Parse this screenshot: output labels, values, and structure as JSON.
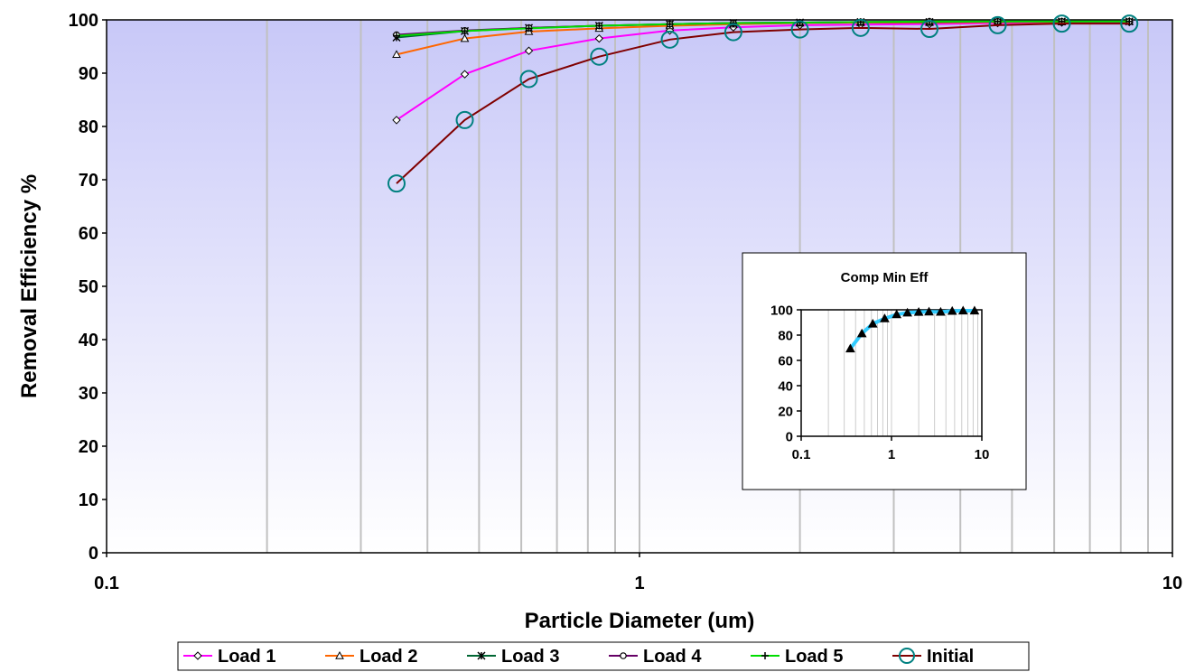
{
  "chart_data": [
    {
      "type": "line",
      "title": "",
      "xlabel": "Particle Diameter (um)",
      "ylabel": "Removal Efficiency %",
      "x_scale": "log",
      "xlim": [
        0.1,
        10
      ],
      "ylim": [
        0,
        100
      ],
      "x_ticks": [
        "0.1",
        "1",
        "10"
      ],
      "y_ticks": [
        "0",
        "10",
        "20",
        "30",
        "40",
        "50",
        "60",
        "70",
        "80",
        "90",
        "100"
      ],
      "grid": "vertical minor log gridlines",
      "legend_position": "bottom",
      "x": [
        0.35,
        0.47,
        0.62,
        0.84,
        1.14,
        1.5,
        2.0,
        2.6,
        3.5,
        4.7,
        6.2,
        8.3
      ],
      "series": [
        {
          "name": "Load 1",
          "color": "#ff00ff",
          "marker": "diamond",
          "values": [
            81.2,
            89.8,
            94.2,
            96.5,
            98.0,
            98.6,
            99.0,
            99.1,
            99.2,
            99.4,
            99.5,
            99.6
          ]
        },
        {
          "name": "Load 2",
          "color": "#ff6600",
          "marker": "triangle",
          "values": [
            93.5,
            96.5,
            97.8,
            98.4,
            98.9,
            99.2,
            99.4,
            99.5,
            99.5,
            99.6,
            99.6,
            99.7
          ]
        },
        {
          "name": "Load 3",
          "color": "#006633",
          "marker": "star",
          "values": [
            96.7,
            97.9,
            98.5,
            98.9,
            99.2,
            99.4,
            99.5,
            99.6,
            99.6,
            99.7,
            99.7,
            99.7
          ]
        },
        {
          "name": "Load 4",
          "color": "#660066",
          "marker": "circle",
          "values": [
            97.2,
            98.0,
            98.5,
            98.9,
            99.2,
            99.4,
            99.5,
            99.6,
            99.7,
            99.7,
            99.7,
            99.7
          ]
        },
        {
          "name": "Load 5",
          "color": "#00dd00",
          "marker": "plus",
          "values": [
            97.0,
            97.9,
            98.4,
            98.9,
            99.2,
            99.4,
            99.5,
            99.6,
            99.7,
            99.7,
            99.7,
            99.7
          ]
        },
        {
          "name": "Initial",
          "color": "#800000",
          "marker": "open-circle",
          "marker_color": "#008080",
          "values": [
            69.3,
            81.2,
            88.9,
            93.1,
            96.3,
            97.7,
            98.2,
            98.5,
            98.3,
            99.0,
            99.3,
            99.3
          ]
        }
      ],
      "plot_background": "gradient #c8c8f8 to #ffffff",
      "colors": {
        "grid": "#c0c0c0"
      }
    },
    {
      "type": "line",
      "title": "Comp Min Eff",
      "xlabel": "",
      "ylabel": "",
      "x_scale": "log",
      "xlim": [
        0.1,
        10
      ],
      "ylim": [
        0,
        100
      ],
      "x_ticks": [
        "0.1",
        "1",
        "10"
      ],
      "y_ticks": [
        "0",
        "20",
        "40",
        "60",
        "80",
        "100"
      ],
      "x": [
        0.35,
        0.47,
        0.62,
        0.84,
        1.14,
        1.5,
        2.0,
        2.6,
        3.5,
        4.7,
        6.2,
        8.3
      ],
      "series": [
        {
          "name": "",
          "color": "#33ccff",
          "marker": "triangle",
          "marker_color": "#000000",
          "values": [
            69.3,
            81.2,
            88.9,
            93.1,
            96.3,
            97.7,
            98.2,
            98.5,
            98.3,
            99.0,
            99.3,
            99.3
          ]
        }
      ]
    }
  ]
}
